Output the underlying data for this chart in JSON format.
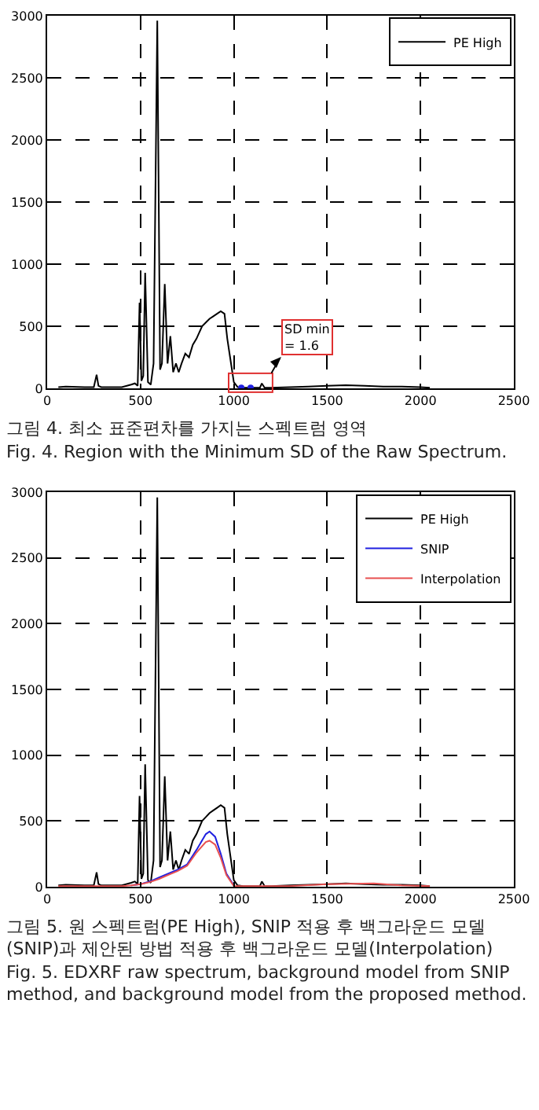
{
  "chart_data": [
    {
      "type": "line",
      "xlim": [
        0,
        2500
      ],
      "ylim": [
        0,
        3000
      ],
      "xticks": [
        0,
        500,
        1000,
        1500,
        2000,
        2500
      ],
      "yticks": [
        0,
        500,
        1000,
        1500,
        2000,
        2500,
        3000
      ],
      "grid": true,
      "legend": "top right",
      "line_style": "solid",
      "series": [
        {
          "name": "PE High",
          "color": "#000000",
          "x": [
            60,
            100,
            200,
            250,
            265,
            275,
            290,
            400,
            450,
            470,
            485,
            495,
            505,
            515,
            525,
            540,
            555,
            570,
            590,
            605,
            615,
            630,
            645,
            660,
            675,
            690,
            705,
            720,
            740,
            760,
            780,
            800,
            830,
            850,
            870,
            890,
            910,
            930,
            950,
            965,
            980,
            1000,
            1020,
            1050,
            1100,
            1140,
            1150,
            1165,
            1200,
            1300,
            1400,
            1500,
            1600,
            1700,
            1800,
            1900,
            2000,
            2050
          ],
          "values": [
            10,
            15,
            10,
            10,
            110,
            20,
            10,
            10,
            30,
            40,
            20,
            690,
            60,
            100,
            930,
            50,
            30,
            200,
            2960,
            150,
            200,
            840,
            200,
            420,
            130,
            200,
            130,
            200,
            280,
            250,
            350,
            400,
            500,
            530,
            560,
            580,
            600,
            620,
            600,
            400,
            250,
            50,
            10,
            5,
            5,
            5,
            40,
            5,
            5,
            10,
            15,
            20,
            25,
            20,
            15,
            15,
            10,
            5
          ]
        },
        {
          "type": "scatter",
          "color": "#2020e0",
          "marker": "circle",
          "x": [
            1040,
            1090
          ],
          "values": [
            5,
            5
          ]
        }
      ],
      "annotations": [
        "SD min\n= 1.6",
        "그림 4.  최소 표준편차를 가지는 스펙트럼 영역",
        "Fig. 4.  Region with the Minimum SD of the Raw Spectrum."
      ]
    },
    {
      "type": "line",
      "xlim": [
        0,
        2500
      ],
      "ylim": [
        0,
        3000
      ],
      "xticks": [
        0,
        500,
        1000,
        1500,
        2000,
        2500
      ],
      "yticks": [
        0,
        500,
        1000,
        1500,
        2000,
        2500,
        3000
      ],
      "grid": true,
      "legend": "top right",
      "line_style": "solid",
      "series": [
        {
          "name": "PE High",
          "color": "#000000",
          "x": [
            60,
            100,
            200,
            250,
            265,
            275,
            290,
            400,
            450,
            470,
            485,
            495,
            505,
            515,
            525,
            540,
            555,
            570,
            590,
            605,
            615,
            630,
            645,
            660,
            675,
            690,
            705,
            720,
            740,
            760,
            780,
            800,
            830,
            850,
            870,
            890,
            910,
            930,
            950,
            965,
            980,
            1000,
            1020,
            1050,
            1100,
            1140,
            1150,
            1165,
            1200,
            1300,
            1400,
            1500,
            1600,
            1700,
            1800,
            1900,
            2000,
            2050
          ],
          "values": [
            10,
            15,
            10,
            10,
            110,
            20,
            10,
            10,
            30,
            40,
            20,
            690,
            60,
            100,
            930,
            50,
            30,
            200,
            2960,
            150,
            200,
            840,
            200,
            420,
            130,
            200,
            130,
            200,
            280,
            250,
            350,
            400,
            500,
            530,
            560,
            580,
            600,
            620,
            600,
            400,
            250,
            50,
            10,
            5,
            5,
            5,
            40,
            5,
            5,
            10,
            15,
            20,
            25,
            20,
            15,
            15,
            10,
            5
          ]
        },
        {
          "name": "SNIP",
          "color": "#2020e0",
          "x": [
            450,
            500,
            550,
            600,
            650,
            700,
            750,
            800,
            850,
            870,
            900,
            930,
            960,
            1000
          ],
          "values": [
            10,
            20,
            40,
            70,
            100,
            130,
            170,
            280,
            400,
            420,
            380,
            250,
            100,
            10
          ]
        },
        {
          "name": "Interpolation",
          "color": "#e85050",
          "x": [
            60,
            200,
            400,
            450,
            500,
            550,
            600,
            650,
            700,
            750,
            800,
            850,
            870,
            900,
            930,
            960,
            1000,
            1100,
            1300,
            1500,
            1750,
            1900,
            2050
          ],
          "values": [
            5,
            5,
            5,
            10,
            20,
            35,
            60,
            90,
            120,
            160,
            260,
            340,
            350,
            320,
            220,
            90,
            5,
            5,
            5,
            20,
            25,
            10,
            5
          ]
        }
      ],
      "annotations": [
        "그림 5.  원 스펙트럼(PE High), SNIP 적용 후 백그라운드 모델(SNIP)과 제안된 방법 적용 후 백그라운드 모델(Interpolation)",
        "Fig. 5.  EDXRF raw spectrum, background model from SNIP method, and background model from the proposed method."
      ]
    }
  ]
}
